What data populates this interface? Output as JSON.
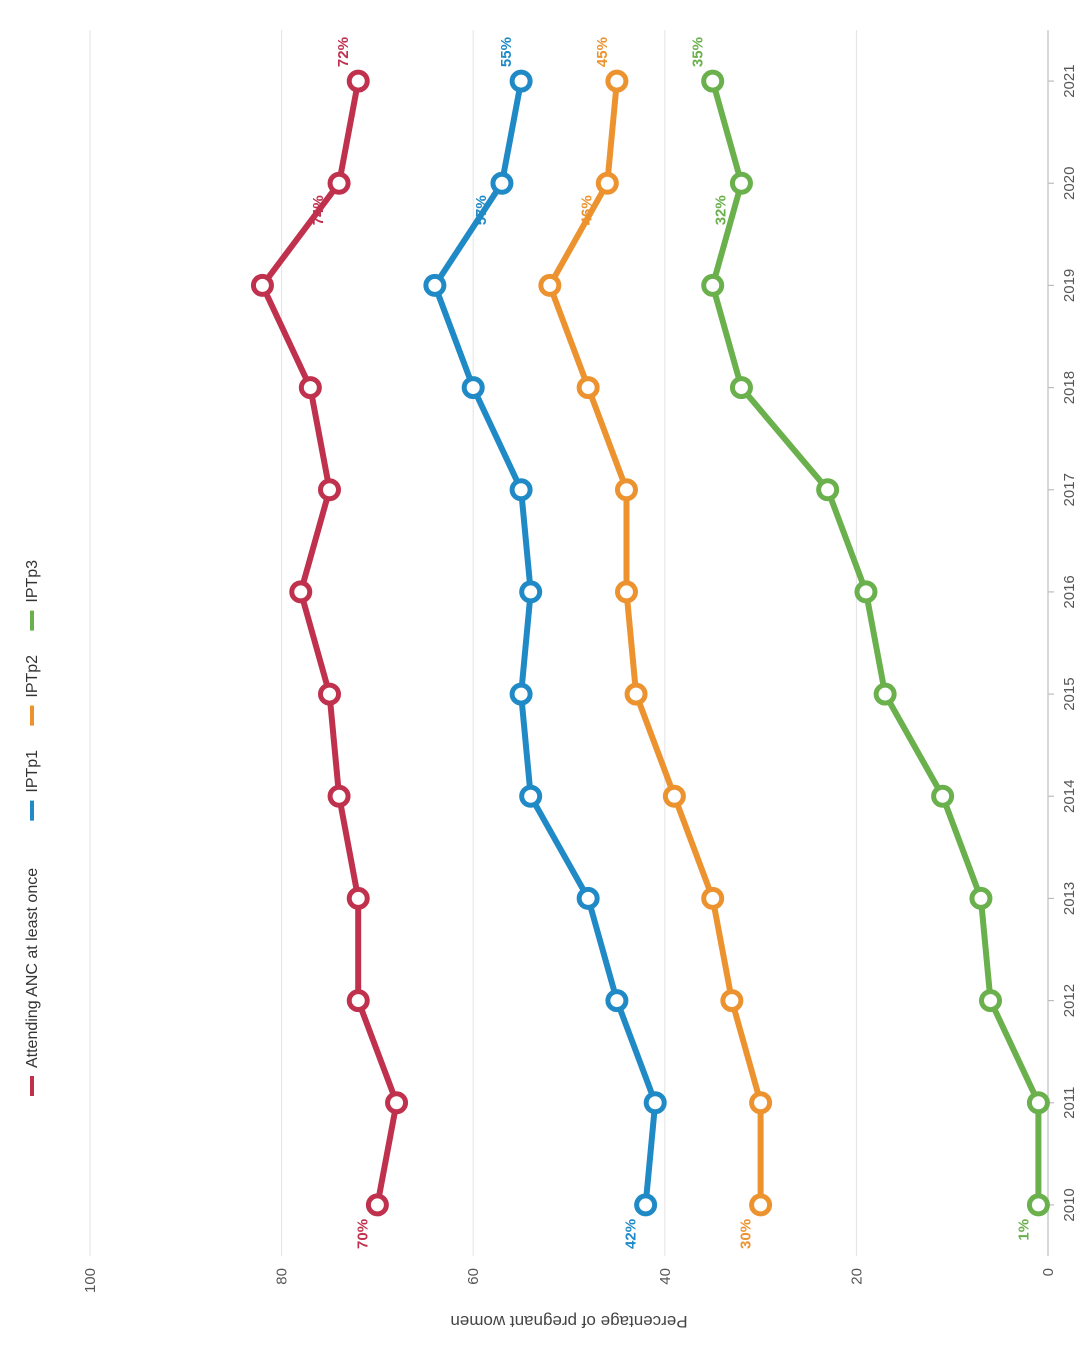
{
  "chart_data": {
    "type": "line",
    "ylabel": "Percentage of pregnant women",
    "ylim": [
      0,
      100
    ],
    "yticks": [
      0,
      20,
      40,
      60,
      80,
      100
    ],
    "x": [
      "2010",
      "2011",
      "2012",
      "2013",
      "2014",
      "2015",
      "2016",
      "2017",
      "2018",
      "2019",
      "2020",
      "2021"
    ],
    "grid": true,
    "legend_position": "top",
    "series": [
      {
        "name": "Attending ANC at least once",
        "color": "#c0314e",
        "values": [
          70,
          68,
          72,
          72,
          74,
          75,
          78,
          75,
          77,
          82,
          74,
          72
        ],
        "labels": [
          {
            "index": 0,
            "text": "70%"
          },
          {
            "index": 10,
            "text": "74%"
          },
          {
            "index": 11,
            "text": "72%"
          }
        ]
      },
      {
        "name": "IPTp1",
        "color": "#1f8ac6",
        "values": [
          42,
          41,
          45,
          48,
          54,
          55,
          54,
          55,
          60,
          64,
          57,
          55
        ],
        "labels": [
          {
            "index": 0,
            "text": "42%"
          },
          {
            "index": 10,
            "text": "57%"
          },
          {
            "index": 11,
            "text": "55%"
          }
        ]
      },
      {
        "name": "IPTp2",
        "color": "#ec9330",
        "values": [
          30,
          30,
          33,
          35,
          39,
          43,
          44,
          44,
          48,
          52,
          46,
          45
        ],
        "labels": [
          {
            "index": 0,
            "text": "30%"
          },
          {
            "index": 10,
            "text": "46%"
          },
          {
            "index": 11,
            "text": "45%"
          }
        ]
      },
      {
        "name": "IPTp3",
        "color": "#6ab04c",
        "values": [
          1,
          1,
          6,
          7,
          11,
          17,
          19,
          23,
          32,
          35,
          32,
          35
        ],
        "labels": [
          {
            "index": 0,
            "text": "1%"
          },
          {
            "index": 10,
            "text": "32%"
          },
          {
            "index": 11,
            "text": "35%"
          }
        ]
      }
    ]
  }
}
